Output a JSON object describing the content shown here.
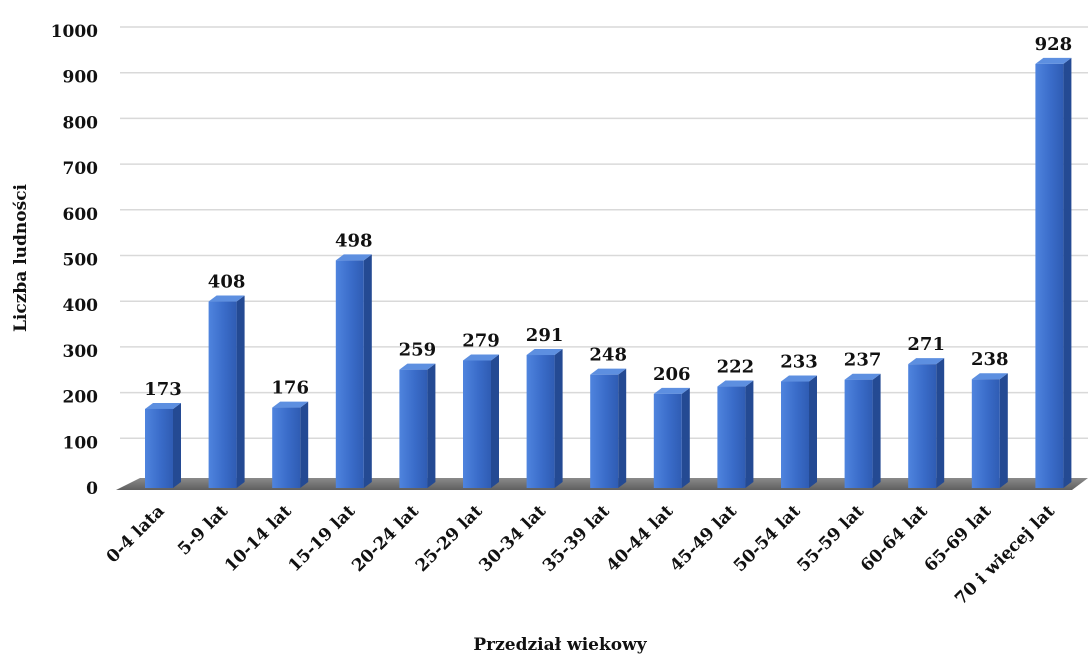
{
  "chart_data": {
    "type": "bar",
    "title": "",
    "xlabel": "Przedział wiekowy",
    "ylabel": "Liczba ludności",
    "categories": [
      "0-4 lata",
      "5-9 lat",
      "10-14 lat",
      "15-19 lat",
      "20-24 lat",
      "25-29 lat",
      "30-34 lat",
      "35-39 lat",
      "40-44 lat",
      "45-49 lat",
      "50-54 lat",
      "55-59 lat",
      "60-64 lat",
      "65-69 lat",
      "70 i więcej lat"
    ],
    "values": [
      173,
      408,
      176,
      498,
      259,
      279,
      291,
      248,
      206,
      222,
      233,
      237,
      271,
      238,
      928
    ],
    "ylim": [
      0,
      1000
    ],
    "yticks": [
      0,
      100,
      200,
      300,
      400,
      500,
      600,
      700,
      800,
      900,
      1000
    ],
    "grid": true,
    "legend": "none",
    "bar_color": "#3a6cc9"
  }
}
